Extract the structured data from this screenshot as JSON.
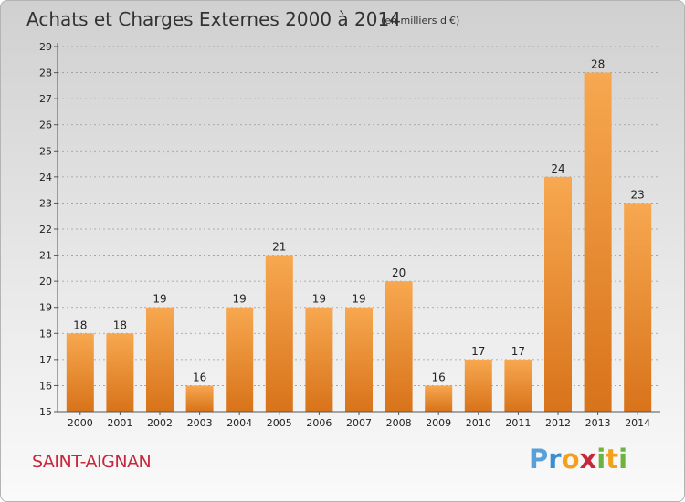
{
  "place": "SAINT-AIGNAN",
  "brand": {
    "letters": [
      "P",
      "r",
      "o",
      "x",
      "i",
      "t",
      "i"
    ],
    "colors": [
      "#5aa0d8",
      "#3b8fd0",
      "#f2a01e",
      "#c8283c",
      "#6cb33f",
      "#f2a01e",
      "#6cb33f"
    ]
  },
  "colors": {
    "bar_light": "#f7a850",
    "bar_dark": "#d8731a",
    "grid": "#9a9a9a"
  },
  "chart_data": {
    "type": "bar",
    "title": "Achats et Charges Externes 2000 à 2014",
    "subtitle": "(en milliers d'€)",
    "xlabel": "",
    "ylabel": "",
    "categories": [
      "2000",
      "2001",
      "2002",
      "2003",
      "2004",
      "2005",
      "2006",
      "2007",
      "2008",
      "2009",
      "2010",
      "2011",
      "2012",
      "2013",
      "2014"
    ],
    "values": [
      18,
      18,
      19,
      16,
      19,
      21,
      19,
      19,
      20,
      16,
      17,
      17,
      24,
      28,
      23
    ],
    "data_labels": [
      "18",
      "18",
      "19",
      "16",
      "19",
      "21",
      "19",
      "19",
      "20",
      "16",
      "17",
      "17",
      "24",
      "28",
      "23"
    ],
    "ylim": [
      15,
      29
    ],
    "yticks": [
      15,
      16,
      17,
      18,
      19,
      20,
      21,
      22,
      23,
      24,
      25,
      26,
      27,
      28,
      29
    ],
    "grid": true,
    "legend": "none"
  }
}
